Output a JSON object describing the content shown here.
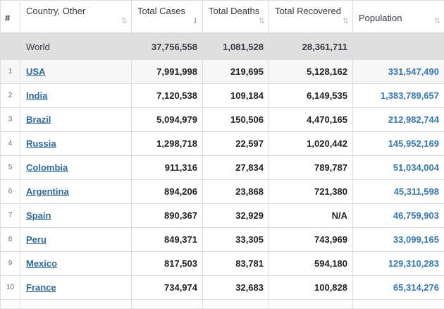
{
  "headers": {
    "num": "#",
    "country": "Country, Other",
    "cases": "Total Cases",
    "deaths": "Total Deaths",
    "recovered": "Total Recovered",
    "population": "Population"
  },
  "sort_icon": "⇅",
  "sort_icon_active": "⇃",
  "world": {
    "country": "World",
    "cases": "37,756,558",
    "deaths": "1,081,528",
    "recovered": "28,361,711",
    "population": ""
  },
  "rows": [
    {
      "rank": "1",
      "country": "USA",
      "cases": "7,991,998",
      "deaths": "219,695",
      "recovered": "5,128,162",
      "population": "331,547,490"
    },
    {
      "rank": "2",
      "country": "India",
      "cases": "7,120,538",
      "deaths": "109,184",
      "recovered": "6,149,535",
      "population": "1,383,789,657"
    },
    {
      "rank": "3",
      "country": "Brazil",
      "cases": "5,094,979",
      "deaths": "150,506",
      "recovered": "4,470,165",
      "population": "212,982,744"
    },
    {
      "rank": "4",
      "country": "Russia",
      "cases": "1,298,718",
      "deaths": "22,597",
      "recovered": "1,020,442",
      "population": "145,952,169"
    },
    {
      "rank": "5",
      "country": "Colombia",
      "cases": "911,316",
      "deaths": "27,834",
      "recovered": "789,787",
      "population": "51,034,004"
    },
    {
      "rank": "6",
      "country": "Argentina",
      "cases": "894,206",
      "deaths": "23,868",
      "recovered": "721,380",
      "population": "45,311,598"
    },
    {
      "rank": "7",
      "country": "Spain",
      "cases": "890,367",
      "deaths": "32,929",
      "recovered": "N/A",
      "population": "46,759,903"
    },
    {
      "rank": "8",
      "country": "Peru",
      "cases": "849,371",
      "deaths": "33,305",
      "recovered": "743,969",
      "population": "33,099,165"
    },
    {
      "rank": "9",
      "country": "Mexico",
      "cases": "817,503",
      "deaths": "83,781",
      "recovered": "594,180",
      "population": "129,310,283"
    },
    {
      "rank": "10",
      "country": "France",
      "cases": "734,974",
      "deaths": "32,683",
      "recovered": "100,828",
      "population": "65,314,276"
    }
  ]
}
